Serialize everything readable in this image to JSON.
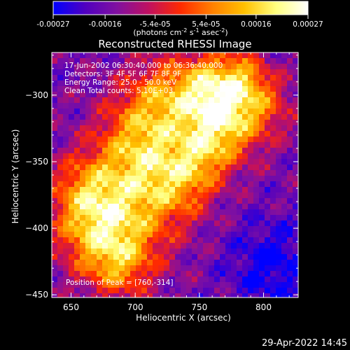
{
  "colorbar": {
    "ticks": [
      "-0.00027",
      "-0.00016",
      "-5.4e-05",
      "5.4e-05",
      "0.00016",
      "0.00027"
    ],
    "tick_values": [
      -0.00027,
      -0.00016,
      -5.4e-05,
      5.4e-05,
      0.00016,
      0.00027
    ],
    "range": [
      -0.00027,
      0.00027
    ],
    "units_main": "(photons cm",
    "units_sup1": "-2",
    "units_mid1": " s",
    "units_sup2": "-1",
    "units_mid2": " asec",
    "units_sup3": "-2",
    "units_end": ")",
    "colormap": [
      "#0000ff",
      "#5000c0",
      "#8010a0",
      "#c01060",
      "#ff2a00",
      "#ff8000",
      "#ffc000",
      "#ffff80",
      "#ffffff"
    ]
  },
  "chart_data": {
    "type": "heatmap",
    "title": "Reconstructed RHESSI Image",
    "xlabel": "Heliocentric X (arcsec)",
    "ylabel": "Heliocentric Y (arcsec)",
    "xlim": [
      635,
      827
    ],
    "ylim": [
      -452,
      -268
    ],
    "xticks": [
      650,
      700,
      750,
      800
    ],
    "yticks": [
      -300,
      -350,
      -400,
      -450
    ],
    "xtick_labels": [
      "650",
      "700",
      "750",
      "800"
    ],
    "ytick_labels": [
      "−300",
      "−350",
      "−400",
      "−450"
    ],
    "info_lines": [
      "17-Jun-2002 06:30:40.000 to 06:36:40.000",
      "Detectors: 3F 4F 5F 6F 7F 8F 9F",
      "Energy Range: 25.0 - 50.0 keV",
      "Clean    Total counts: 5.10E+03"
    ],
    "peak_label": "Position of Peak = [760,-314]",
    "peak": [
      760,
      -314
    ]
  },
  "footer": {
    "date": "29-Apr-2022 14:45"
  }
}
